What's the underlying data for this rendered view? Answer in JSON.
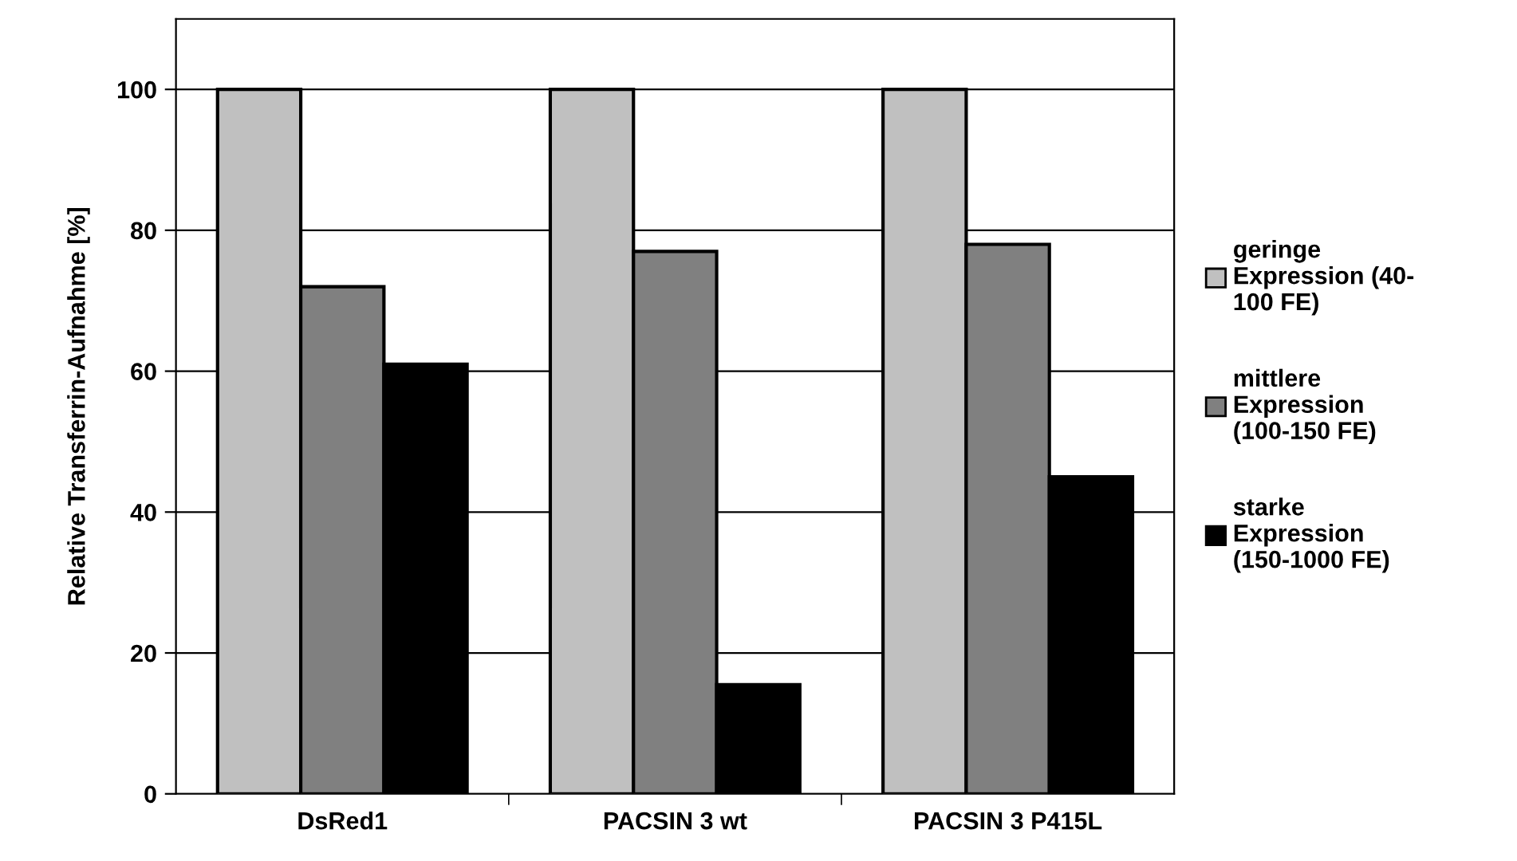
{
  "chart_data": {
    "type": "bar",
    "ylabel": "Relative Transferrin-Aufnahme [%]",
    "categories": [
      "DsRed1",
      "PACSIN 3 wt",
      "PACSIN 3 P415L"
    ],
    "series": [
      {
        "name": "geringe\nExpression (40-\n100 FE)",
        "color": "#c0c0c0",
        "values": [
          100,
          100,
          100
        ]
      },
      {
        "name": "mittlere\nExpression\n(100-150 FE)",
        "color": "#808080",
        "values": [
          72,
          77,
          78
        ]
      },
      {
        "name": "starke\nExpression\n(150-1000 FE)",
        "color": "#000000",
        "values": [
          61,
          15.5,
          45
        ]
      }
    ],
    "ylim": [
      0,
      110
    ],
    "yticks": [
      0,
      20,
      40,
      60,
      80,
      100
    ],
    "grid": "y",
    "legend": "right"
  }
}
